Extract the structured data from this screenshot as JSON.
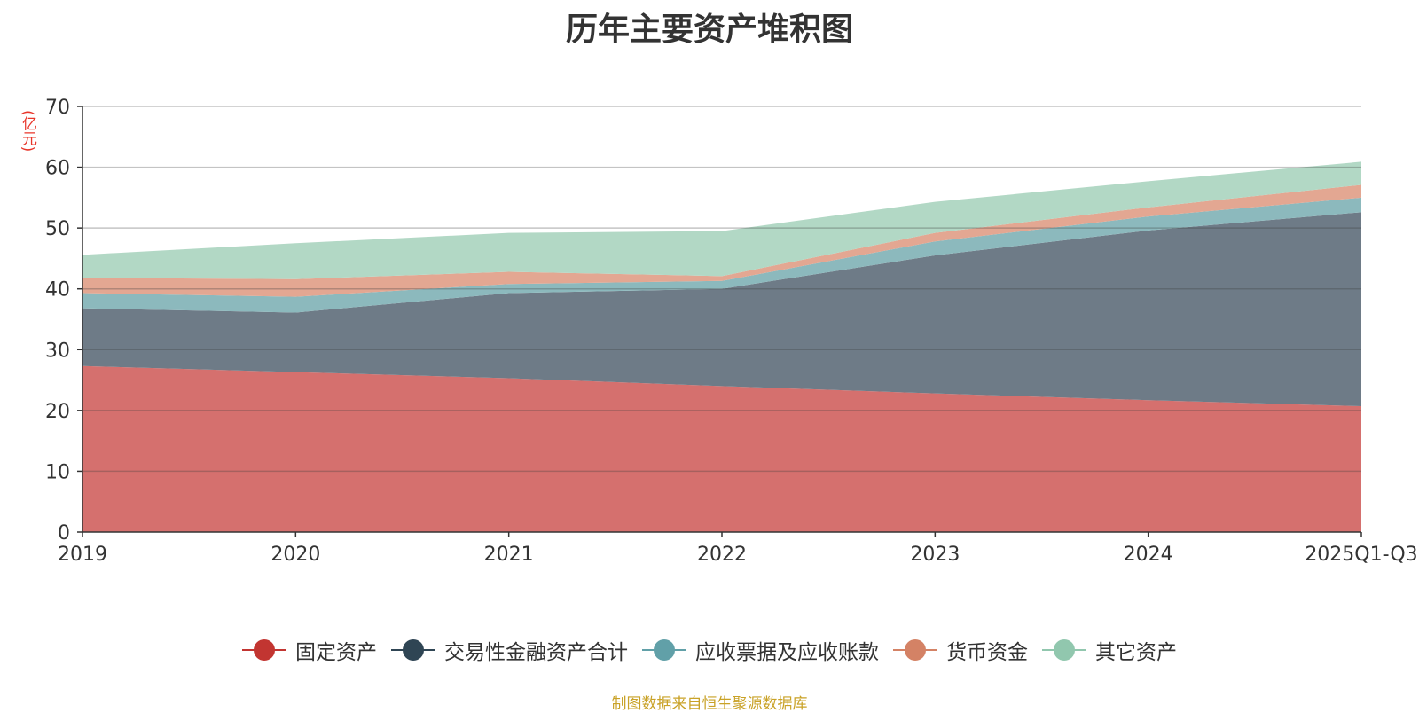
{
  "chart_data": {
    "type": "area",
    "stacked": true,
    "title": "历年主要资产堆积图",
    "ylabel": "(亿元)",
    "xlabel": "",
    "categories": [
      "2019",
      "2020",
      "2021",
      "2022",
      "2023",
      "2024",
      "2025Q1-Q3"
    ],
    "ylim": [
      0,
      70
    ],
    "yticks": [
      0,
      10,
      20,
      30,
      40,
      50,
      60,
      70
    ],
    "grid": true,
    "legend_position": "bottom",
    "series": [
      {
        "name": "固定资产",
        "color": "#c23531",
        "fill": "#d5706e",
        "values": [
          27.3,
          26.3,
          25.3,
          24.0,
          22.8,
          21.7,
          20.7
        ]
      },
      {
        "name": "交易性金融资产合计",
        "color": "#2f4554",
        "fill": "#6e7b87",
        "values": [
          9.5,
          9.8,
          14.0,
          16.0,
          22.7,
          27.9,
          31.9
        ]
      },
      {
        "name": "应收票据及应收账款",
        "color": "#61a0a8",
        "fill": "#8cb9bd",
        "values": [
          2.5,
          2.6,
          1.5,
          1.3,
          2.3,
          2.3,
          2.4
        ]
      },
      {
        "name": "货币资金",
        "color": "#d48265",
        "fill": "#e3a792",
        "values": [
          2.5,
          2.9,
          2.0,
          0.8,
          1.4,
          1.5,
          2.1
        ]
      },
      {
        "name": "其它资产",
        "color": "#91c7ae",
        "fill": "#b2d8c5",
        "values": [
          3.8,
          5.9,
          6.4,
          7.4,
          5.1,
          4.3,
          3.8
        ]
      }
    ]
  },
  "source_note": "制图数据来自恒生聚源数据库"
}
